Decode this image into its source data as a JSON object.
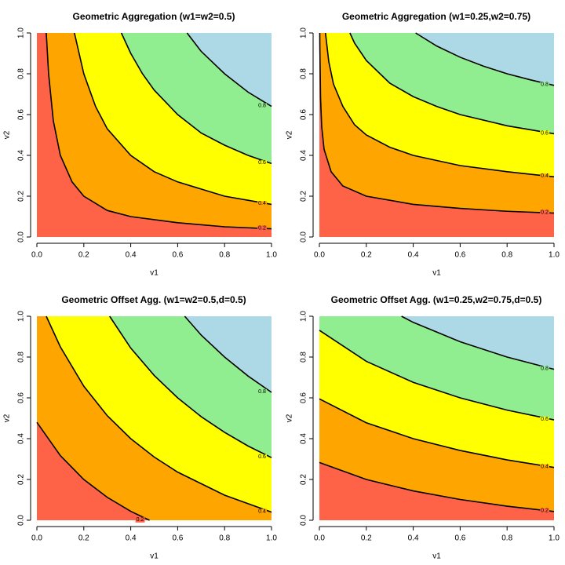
{
  "chart_data": [
    {
      "type": "contour",
      "title": "Geometric Aggregation (w1=w2=0.5)",
      "xlabel": "v1",
      "ylabel": "v2",
      "xlim": [
        0,
        1
      ],
      "ylim": [
        0,
        1
      ],
      "xticks": [
        {
          "value": 0,
          "label": "0.0"
        },
        0.2,
        0.4,
        0.6,
        0.8,
        {
          "value": 1,
          "label": "1.0"
        }
      ],
      "yticks": [
        {
          "value": 0,
          "label": "0.0"
        },
        0.2,
        0.4,
        0.6,
        0.8,
        {
          "value": 1,
          "label": "1.0"
        }
      ],
      "colors": [
        "#ff6347",
        "#ffa500",
        "#ffff00",
        "#90ee90",
        "#add8e6"
      ],
      "series": [
        {
          "level": 0.2,
          "x": [
            0.04,
            0.05,
            0.07,
            0.1,
            0.15,
            0.2,
            0.3,
            0.4,
            0.6,
            0.8,
            1.0
          ],
          "y": [
            1.0,
            0.8,
            0.57,
            0.4,
            0.27,
            0.2,
            0.13,
            0.1,
            0.07,
            0.05,
            0.04
          ]
        },
        {
          "level": 0.4,
          "x": [
            0.16,
            0.2,
            0.25,
            0.3,
            0.4,
            0.5,
            0.6,
            0.8,
            1.0
          ],
          "y": [
            1.0,
            0.8,
            0.64,
            0.53,
            0.4,
            0.32,
            0.27,
            0.2,
            0.16
          ]
        },
        {
          "level": 0.6,
          "x": [
            0.36,
            0.4,
            0.45,
            0.5,
            0.6,
            0.7,
            0.8,
            0.9,
            1.0
          ],
          "y": [
            1.0,
            0.9,
            0.8,
            0.72,
            0.6,
            0.51,
            0.45,
            0.4,
            0.36
          ]
        },
        {
          "level": 0.8,
          "x": [
            0.64,
            0.7,
            0.8,
            0.9,
            1.0
          ],
          "y": [
            1.0,
            0.91,
            0.8,
            0.71,
            0.64
          ]
        }
      ]
    },
    {
      "type": "contour",
      "title": "Geometric Aggregation (w1=0.25,w2=0.75)",
      "xlabel": "v1",
      "ylabel": "v2",
      "xlim": [
        0,
        1
      ],
      "ylim": [
        0,
        1
      ],
      "xticks": [
        {
          "value": 0,
          "label": "0.0"
        },
        0.2,
        0.4,
        0.6,
        0.8,
        {
          "value": 1,
          "label": "1.0"
        }
      ],
      "yticks": [
        {
          "value": 0,
          "label": "0.0"
        },
        0.2,
        0.4,
        0.6,
        0.8,
        {
          "value": 1,
          "label": "1.0"
        }
      ],
      "colors": [
        "#ff6347",
        "#ffa500",
        "#ffff00",
        "#90ee90",
        "#add8e6"
      ],
      "series": [
        {
          "level": 0.2,
          "x": [
            0.0016,
            0.002,
            0.005,
            0.01,
            0.02,
            0.05,
            0.1,
            0.2,
            0.4,
            0.6,
            0.8,
            1.0
          ],
          "y": [
            1.0,
            0.93,
            0.68,
            0.54,
            0.43,
            0.32,
            0.25,
            0.2,
            0.16,
            0.14,
            0.126,
            0.117
          ]
        },
        {
          "level": 0.4,
          "x": [
            0.026,
            0.04,
            0.06,
            0.1,
            0.15,
            0.2,
            0.3,
            0.4,
            0.6,
            0.8,
            1.0
          ],
          "y": [
            1.0,
            0.86,
            0.75,
            0.64,
            0.55,
            0.5,
            0.44,
            0.4,
            0.35,
            0.32,
            0.295
          ]
        },
        {
          "level": 0.6,
          "x": [
            0.13,
            0.15,
            0.2,
            0.3,
            0.4,
            0.5,
            0.6,
            0.8,
            1.0
          ],
          "y": [
            1.0,
            0.95,
            0.865,
            0.754,
            0.688,
            0.64,
            0.6,
            0.545,
            0.506
          ]
        },
        {
          "level": 0.8,
          "x": [
            0.41,
            0.5,
            0.6,
            0.7,
            0.8,
            0.9,
            1.0
          ],
          "y": [
            1.0,
            0.936,
            0.881,
            0.837,
            0.8,
            0.77,
            0.743
          ]
        }
      ]
    },
    {
      "type": "contour",
      "title": "Geometric Offset Agg. (w1=w2=0.5,d=0.5)",
      "xlabel": "v1",
      "ylabel": "v2",
      "xlim": [
        0,
        1
      ],
      "ylim": [
        0,
        1
      ],
      "xticks": [
        {
          "value": 0,
          "label": "0.0"
        },
        0.2,
        0.4,
        0.6,
        0.8,
        {
          "value": 1,
          "label": "1.0"
        }
      ],
      "yticks": [
        {
          "value": 0,
          "label": "0.0"
        },
        0.2,
        0.4,
        0.6,
        0.8,
        {
          "value": 1,
          "label": "1.0"
        }
      ],
      "colors": [
        "#ff6347",
        "#ffa500",
        "#ffff00",
        "#90ee90",
        "#add8e6"
      ],
      "series": [
        {
          "level": 0.2,
          "x": [
            0,
            0.1,
            0.2,
            0.3,
            0.4,
            0.48
          ],
          "y": [
            0.48,
            0.317,
            0.2,
            0.1125,
            0.044,
            0
          ]
        },
        {
          "level": 0.4,
          "x": [
            0.04,
            0.1,
            0.2,
            0.3,
            0.4,
            0.5,
            0.6,
            0.8,
            1.0
          ],
          "y": [
            1.0,
            0.85,
            0.657,
            0.5125,
            0.4,
            0.31,
            0.236,
            0.123,
            0.04
          ]
        },
        {
          "level": 0.6,
          "x": [
            0.31,
            0.4,
            0.5,
            0.6,
            0.7,
            0.8,
            0.9,
            1.0
          ],
          "y": [
            1.0,
            0.844,
            0.71,
            0.6,
            0.508,
            0.431,
            0.364,
            0.307
          ]
        },
        {
          "level": 0.8,
          "x": [
            0.63,
            0.7,
            0.8,
            0.9,
            1.0
          ],
          "y": [
            1.0,
            0.908,
            0.8,
            0.707,
            0.627
          ]
        }
      ]
    },
    {
      "type": "contour",
      "title": "Geometric Offset Agg. (w1=0.25,w2=0.75,d=0.5)",
      "xlabel": "v1",
      "ylabel": "v2",
      "xlim": [
        0,
        1
      ],
      "ylim": [
        0,
        1
      ],
      "xticks": [
        {
          "value": 0,
          "label": "0.0"
        },
        0.2,
        0.4,
        0.6,
        0.8,
        {
          "value": 1,
          "label": "1.0"
        }
      ],
      "yticks": [
        {
          "value": 0,
          "label": "0.0"
        },
        0.2,
        0.4,
        0.6,
        0.8,
        {
          "value": 1,
          "label": "1.0"
        }
      ],
      "colors": [
        "#ff6347",
        "#ffa500",
        "#ffff00",
        "#90ee90",
        "#add8e6"
      ],
      "series": [
        {
          "level": 0.2,
          "x": [
            0,
            0.2,
            0.4,
            0.6,
            0.8,
            1.0
          ],
          "y": [
            0.283,
            0.2,
            0.144,
            0.102,
            0.069,
            0.043
          ]
        },
        {
          "level": 0.4,
          "x": [
            0,
            0.2,
            0.4,
            0.6,
            0.8,
            1.0
          ],
          "y": [
            0.595,
            0.478,
            0.4,
            0.342,
            0.296,
            0.259
          ]
        },
        {
          "level": 0.6,
          "x": [
            0,
            0.2,
            0.4,
            0.6,
            0.8,
            1.0
          ],
          "y": [
            0.931,
            0.779,
            0.676,
            0.6,
            0.54,
            0.492
          ]
        },
        {
          "level": 0.8,
          "x": [
            0.35,
            0.4,
            0.6,
            0.8,
            1.0
          ],
          "y": [
            1.0,
            0.97,
            0.875,
            0.8,
            0.74
          ]
        }
      ]
    }
  ]
}
